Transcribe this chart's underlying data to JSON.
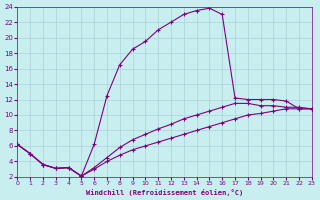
{
  "xlabel": "Windchill (Refroidissement éolien,°C)",
  "bg_color": "#c8eef0",
  "grid_color": "#aad4d8",
  "line_color": "#800080",
  "xlim": [
    0,
    23
  ],
  "ylim": [
    2,
    24
  ],
  "xticks": [
    0,
    1,
    2,
    3,
    4,
    5,
    6,
    7,
    8,
    9,
    10,
    11,
    12,
    13,
    14,
    15,
    16,
    17,
    18,
    19,
    20,
    21,
    22,
    23
  ],
  "yticks": [
    2,
    4,
    6,
    8,
    10,
    12,
    14,
    16,
    18,
    20,
    22,
    24
  ],
  "line_high_x": [
    0,
    1,
    2,
    3,
    4,
    5,
    6,
    7,
    8,
    9,
    10,
    11,
    12,
    13,
    14,
    15,
    16,
    17,
    18,
    19,
    20,
    21,
    22,
    23
  ],
  "line_high_y": [
    6.2,
    5.0,
    3.6,
    3.1,
    3.2,
    2.1,
    6.2,
    12.5,
    16.5,
    18.5,
    19.5,
    21.0,
    22.0,
    23.0,
    23.5,
    23.8,
    23.0,
    12.2,
    12.0,
    12.0,
    12.0,
    11.8,
    10.8,
    10.8
  ],
  "line_mid_x": [
    0,
    1,
    2,
    3,
    4,
    5,
    6,
    7,
    8,
    9,
    10,
    11,
    12,
    13,
    14,
    15,
    16,
    17,
    18,
    19,
    20,
    21,
    22,
    23
  ],
  "line_mid_y": [
    6.2,
    5.0,
    3.6,
    3.1,
    3.2,
    2.1,
    3.2,
    4.5,
    5.8,
    6.8,
    7.5,
    8.2,
    8.8,
    9.5,
    10.0,
    10.5,
    11.0,
    11.5,
    11.5,
    11.2,
    11.2,
    11.0,
    11.0,
    10.8
  ],
  "line_low_x": [
    0,
    1,
    2,
    3,
    4,
    5,
    6,
    7,
    8,
    9,
    10,
    11,
    12,
    13,
    14,
    15,
    16,
    17,
    18,
    19,
    20,
    21,
    22,
    23
  ],
  "line_low_y": [
    6.2,
    5.0,
    3.6,
    3.1,
    3.2,
    2.1,
    3.0,
    4.0,
    4.8,
    5.5,
    6.0,
    6.5,
    7.0,
    7.5,
    8.0,
    8.5,
    9.0,
    9.5,
    10.0,
    10.2,
    10.5,
    10.8,
    10.8,
    10.8
  ]
}
